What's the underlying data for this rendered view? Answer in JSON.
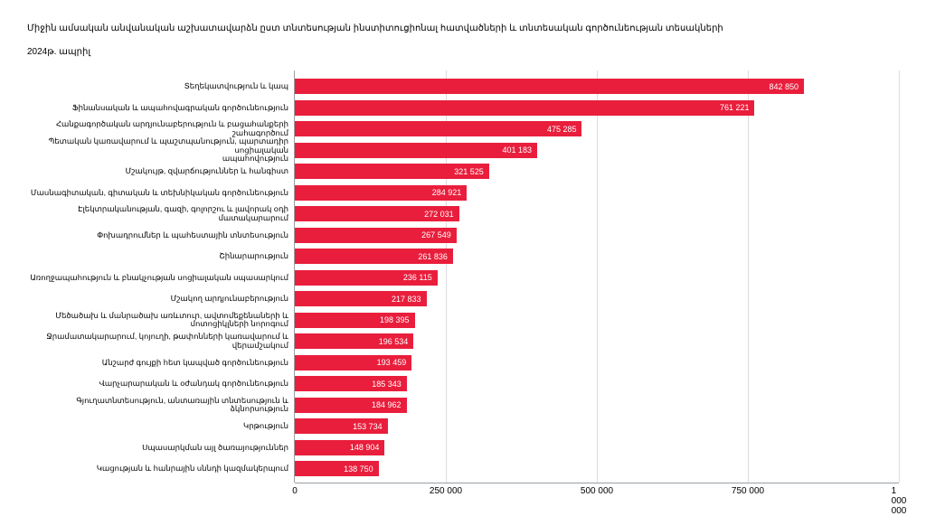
{
  "chart": {
    "type": "bar-horizontal",
    "title_line1": "Միջին ամսական անվանական աշխատավարձն ըստ տնտեսության ինստիտուցիոնալ հատվածների և տնտեսական գործունեության տեսակների",
    "title_line2": "2024թ. ապրիլ",
    "background_color": "#ffffff",
    "bar_color": "#e91e3c",
    "grid_color": "#dadce0",
    "axis_color": "#9aa0a6",
    "text_color": "#000000",
    "value_label_color": "#ffffff",
    "title_fontsize": 10,
    "label_fontsize": 8.5,
    "value_fontsize": 9,
    "tick_fontsize": 10,
    "xlim": [
      0,
      1000000
    ],
    "xtick_step": 250000,
    "xticks": [
      {
        "value": 0,
        "label": "0"
      },
      {
        "value": 250000,
        "label": "250 000"
      },
      {
        "value": 500000,
        "label": "500 000"
      },
      {
        "value": 750000,
        "label": "750 000"
      },
      {
        "value": 1000000,
        "label": "1 000 000"
      }
    ],
    "categories": [
      {
        "label": "Տեղեկատվություն և կապ",
        "value": 842850,
        "value_label": "842 850"
      },
      {
        "label": "Ֆինանսական և ապահովագրական գործունեություն",
        "value": 761221,
        "value_label": "761 221"
      },
      {
        "label": "Հանքագործական արդյունաբերություն և բացահանքերի շահագործում",
        "value": 475285,
        "value_label": "475 285"
      },
      {
        "label": "Պետական կառավարում և պաշտպանություն, պարտադիր սոցիալական\nապահովություն",
        "value": 401183,
        "value_label": "401 183"
      },
      {
        "label": "Մշակույթ, զվարճություններ և հանգիստ",
        "value": 321525,
        "value_label": "321 525"
      },
      {
        "label": "Մասնագիտական, գիտական և տեխնիկական գործունեություն",
        "value": 284921,
        "value_label": "284 921"
      },
      {
        "label": "Էլեկտրականության, գազի, գոլորշու և լավորակ օդի մատակարարում",
        "value": 272031,
        "value_label": "272 031"
      },
      {
        "label": "Փոխադրումներ և պահեստային տնտեսություն",
        "value": 267549,
        "value_label": "267 549"
      },
      {
        "label": "Շինարարություն",
        "value": 261836,
        "value_label": "261 836"
      },
      {
        "label": "Առողջապահություն և բնակչության սոցիալական սպասարկում",
        "value": 236115,
        "value_label": "236 115"
      },
      {
        "label": "Մշակող արդյունաբերություն",
        "value": 217833,
        "value_label": "217 833"
      },
      {
        "label": "Մեծածախ և մանրածախ առևտուր, ավտոմեքենաների և մոտոցիկլների նորոգում",
        "value": 198395,
        "value_label": "198 395"
      },
      {
        "label": "Ջրամատակարարում, կոյուղի, թափոնների կառավարում և վերամշակում",
        "value": 196534,
        "value_label": "196 534"
      },
      {
        "label": "Անշարժ գույքի հետ կապված գործունեություն",
        "value": 193459,
        "value_label": "193 459"
      },
      {
        "label": "Վարչարարական և օժանդակ գործունեություն",
        "value": 185343,
        "value_label": "185 343"
      },
      {
        "label": "Գյուղատնտեսություն, անտառային տնտեսություն և ձկնորսություն",
        "value": 184962,
        "value_label": "184 962"
      },
      {
        "label": "Կրթություն",
        "value": 153734,
        "value_label": "153 734"
      },
      {
        "label": "Սպասարկման այլ ծառայություններ",
        "value": 148904,
        "value_label": "148 904"
      },
      {
        "label": "Կացության և հանրային սննդի կազմակերպում",
        "value": 138750,
        "value_label": "138 750"
      }
    ]
  }
}
